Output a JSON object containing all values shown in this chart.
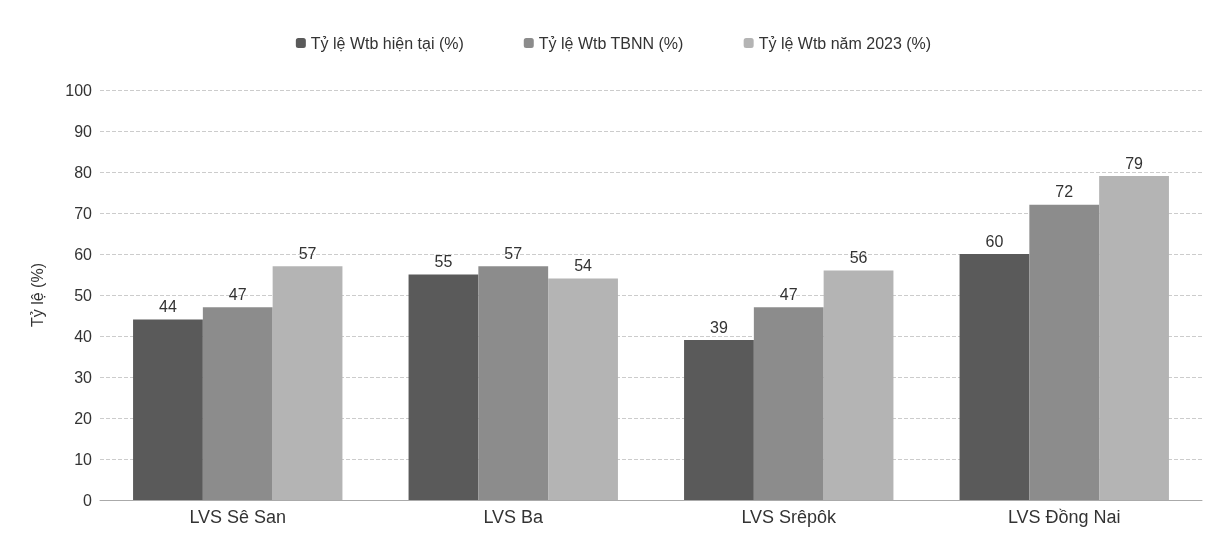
{
  "chart_data": {
    "type": "bar",
    "ylabel": "Tỷ lệ (%)",
    "categories": [
      "LVS Sê San",
      "LVS Ba",
      "LVS Srêpôk",
      "LVS Đồng Nai"
    ],
    "series": [
      {
        "name": "Tỷ lệ Wtb hiện tại (%)",
        "color": "#5a5a5a",
        "values": [
          44,
          55,
          39,
          60
        ]
      },
      {
        "name": "Tỷ lệ Wtb TBNN (%)",
        "color": "#8c8c8c",
        "values": [
          47,
          57,
          47,
          72
        ]
      },
      {
        "name": "Tỷ lệ Wtb năm 2023 (%)",
        "color": "#b4b4b4",
        "values": [
          57,
          54,
          56,
          79
        ]
      }
    ],
    "ylim": [
      0,
      100
    ],
    "yticks": [
      0,
      10,
      20,
      30,
      40,
      50,
      60,
      70,
      80,
      90,
      100
    ],
    "grid": "y",
    "legend": "top",
    "data_labels": true
  }
}
